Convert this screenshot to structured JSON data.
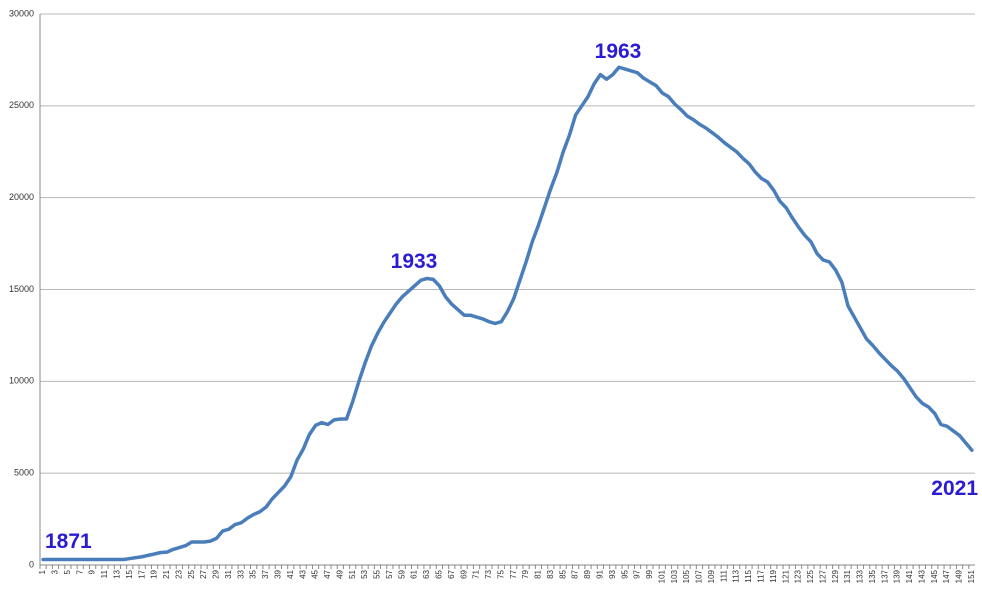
{
  "chart_data": {
    "type": "line",
    "categories": [
      "1",
      null,
      "3",
      null,
      "5",
      null,
      "7",
      null,
      "9",
      null,
      "11",
      null,
      "13",
      null,
      "15",
      null,
      "17",
      null,
      "19",
      null,
      "21",
      null,
      "23",
      null,
      "25",
      null,
      "27",
      null,
      "29",
      null,
      "31",
      null,
      "33",
      null,
      "35",
      null,
      "37",
      null,
      "39",
      null,
      "41",
      null,
      "43",
      null,
      "45",
      null,
      "47",
      null,
      "49",
      null,
      "51",
      null,
      "53",
      null,
      "55",
      null,
      "57",
      null,
      "59",
      null,
      "61",
      null,
      "63",
      null,
      "65",
      null,
      "67",
      null,
      "69",
      null,
      "71",
      null,
      "73",
      null,
      "75",
      null,
      "77",
      null,
      "79",
      null,
      "81",
      null,
      "83",
      null,
      "85",
      null,
      "87",
      null,
      "89",
      null,
      "91",
      null,
      "93",
      null,
      "95",
      null,
      "97",
      null,
      "99",
      null,
      "101",
      null,
      "103",
      null,
      "105",
      null,
      "107",
      null,
      "109",
      null,
      "111",
      null,
      "113",
      null,
      "115",
      null,
      "117",
      null,
      "119",
      null,
      "121",
      null,
      "123",
      null,
      "125",
      null,
      "127",
      null,
      "129",
      null,
      "131",
      null,
      "133",
      null,
      "135",
      null,
      "137",
      null,
      "139",
      null,
      "141",
      null,
      "143",
      null,
      "145",
      null,
      "147",
      null,
      "149",
      null,
      "151"
    ],
    "series": [
      {
        "color": "#4a7ebb",
        "values": [
          300,
          300,
          300,
          300,
          300,
          300,
          300,
          300,
          300,
          300,
          300,
          300,
          300,
          300,
          350,
          400,
          450,
          530,
          600,
          680,
          700,
          850,
          950,
          1050,
          1250,
          1250,
          1250,
          1300,
          1450,
          1850,
          1950,
          2200,
          2300,
          2550,
          2750,
          2900,
          3150,
          3600,
          3950,
          4300,
          4800,
          5700,
          6300,
          7100,
          7600,
          7750,
          7650,
          7900,
          7950,
          7950,
          8900,
          10000,
          11000,
          11900,
          12600,
          13200,
          13700,
          14200,
          14600,
          14900,
          15200,
          15500,
          15600,
          15550,
          15200,
          14600,
          14200,
          13900,
          13600,
          13600,
          13500,
          13400,
          13250,
          13150,
          13250,
          13800,
          14500,
          15500,
          16500,
          17600,
          18500,
          19500,
          20500,
          21400,
          22500,
          23400,
          24500,
          25000,
          25500,
          26200,
          26700,
          26450,
          26700,
          27100,
          27000,
          26900,
          26800,
          26500,
          26300,
          26100,
          25700,
          25500,
          25100,
          24800,
          24450,
          24250,
          24000,
          23800,
          23550,
          23300,
          23000,
          22750,
          22500,
          22150,
          21850,
          21400,
          21050,
          20850,
          20400,
          19800,
          19450,
          18900,
          18400,
          17950,
          17600,
          16950,
          16600,
          16500,
          16050,
          15400,
          14100,
          13500,
          12900,
          12300,
          11950,
          11550,
          11200,
          10850,
          10550,
          10150,
          9650,
          9150,
          8800,
          8600,
          8250,
          7650,
          7550,
          7300,
          7050,
          6650,
          6250
        ]
      }
    ],
    "ylim": [
      0,
      30000
    ],
    "yticks": [
      0,
      5000,
      10000,
      15000,
      20000,
      25000,
      30000
    ],
    "grid": true,
    "annotations": [
      "1871",
      "1933",
      "1963",
      "2021"
    ],
    "annotation_color": "#2a1bd4"
  }
}
